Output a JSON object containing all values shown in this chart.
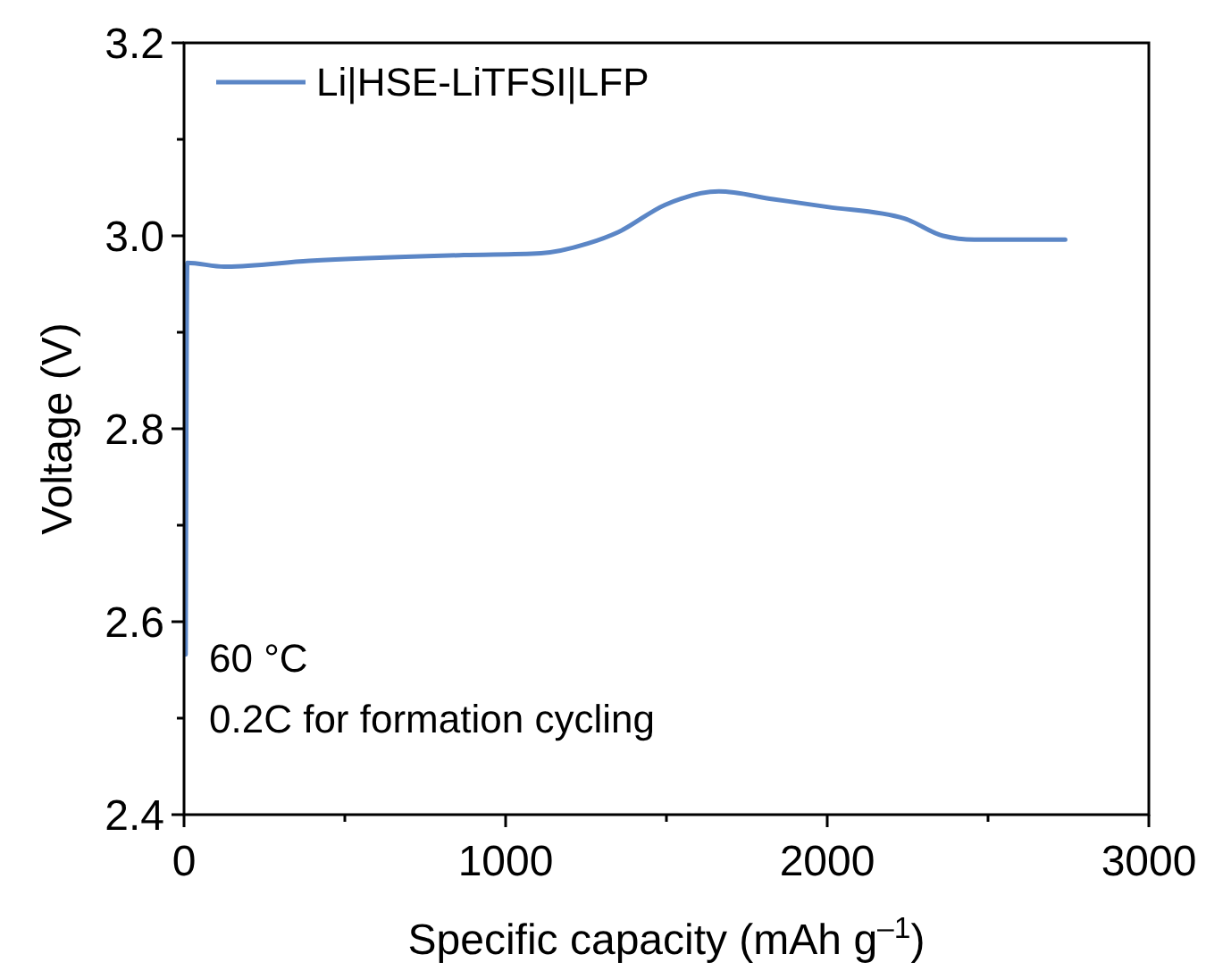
{
  "chart_data": {
    "type": "line",
    "xlabel": "Specific capacity (mAh g$^{–1}$)",
    "ylabel": "Voltage (V)",
    "xlim": [
      0,
      3000
    ],
    "xticks": [
      0,
      {
        "value": 500,
        "label": null
      },
      1000,
      {
        "value": 1500,
        "label": null
      },
      2000,
      {
        "value": 2500,
        "label": null
      },
      3000
    ],
    "ylim": [
      2.4,
      3.2
    ],
    "yticks": [
      {
        "value": 2.4,
        "label": "2.4"
      },
      {
        "value": 2.5,
        "label": null
      },
      {
        "value": 2.6,
        "label": "2.6"
      },
      {
        "value": 2.7,
        "label": null
      },
      {
        "value": 2.8,
        "label": "2.8"
      },
      {
        "value": 2.9,
        "label": null
      },
      {
        "value": 3.0,
        "label": "3.0"
      },
      {
        "value": 3.1,
        "label": null
      },
      {
        "value": 3.2,
        "label": "3.2"
      }
    ],
    "legend": "top left",
    "grid": false,
    "marker": "none",
    "line_style": "solid",
    "annotations": [
      "60 °C",
      "0.2C for formation cycling"
    ],
    "series": [
      {
        "name": "Li|HSE-LiTFSI|LFP",
        "color": "#5b86c6",
        "x": [
          5,
          10,
          125,
          389,
          870,
          1110,
          1255,
          1351,
          1495,
          1663,
          1832,
          2000,
          2240,
          2360,
          2457,
          2740
        ],
        "values": [
          2.566,
          2.972,
          2.968,
          2.974,
          2.98,
          2.982,
          2.992,
          3.004,
          3.032,
          3.046,
          3.038,
          3.03,
          3.018,
          3.0,
          2.996,
          2.996
        ]
      }
    ]
  }
}
